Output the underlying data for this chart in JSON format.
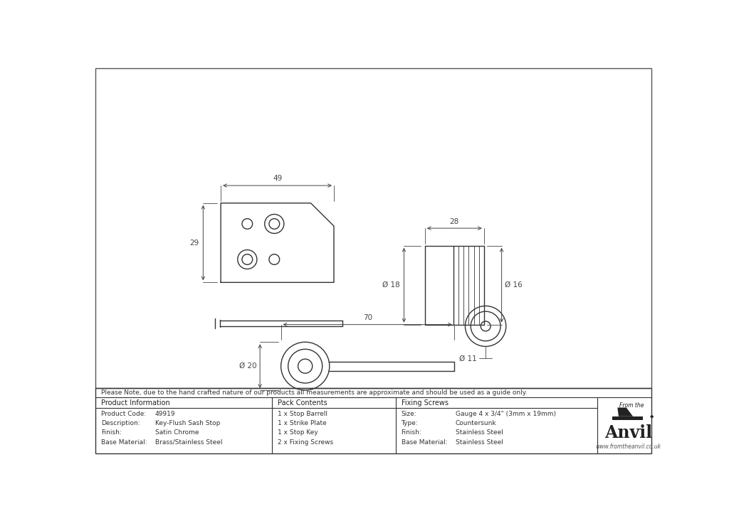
{
  "bg_color": "#ffffff",
  "line_color": "#333333",
  "dim_color": "#444444",
  "note_text": "Please Note, due to the hand crafted nature of our products all measurements are approximate and should be used as a guide only.",
  "product_info": {
    "Product Code:": "49919",
    "Description:": "Key-Flush Sash Stop",
    "Finish:": "Satin Chrome",
    "Base Material:": "Brass/Stainless Steel"
  },
  "pack_contents": [
    "1 x Stop Barrell",
    "1 x Strike Plate",
    "1 x Stop Key",
    "2 x Fixing Screws"
  ],
  "fixing_screws": {
    "Size:": "Gauge 4 x 3/4\" (3mm x 19mm)",
    "Type:": "Countersunk",
    "Finish:": "Stainless Steel",
    "Base Material:": "Stainless Steel"
  }
}
